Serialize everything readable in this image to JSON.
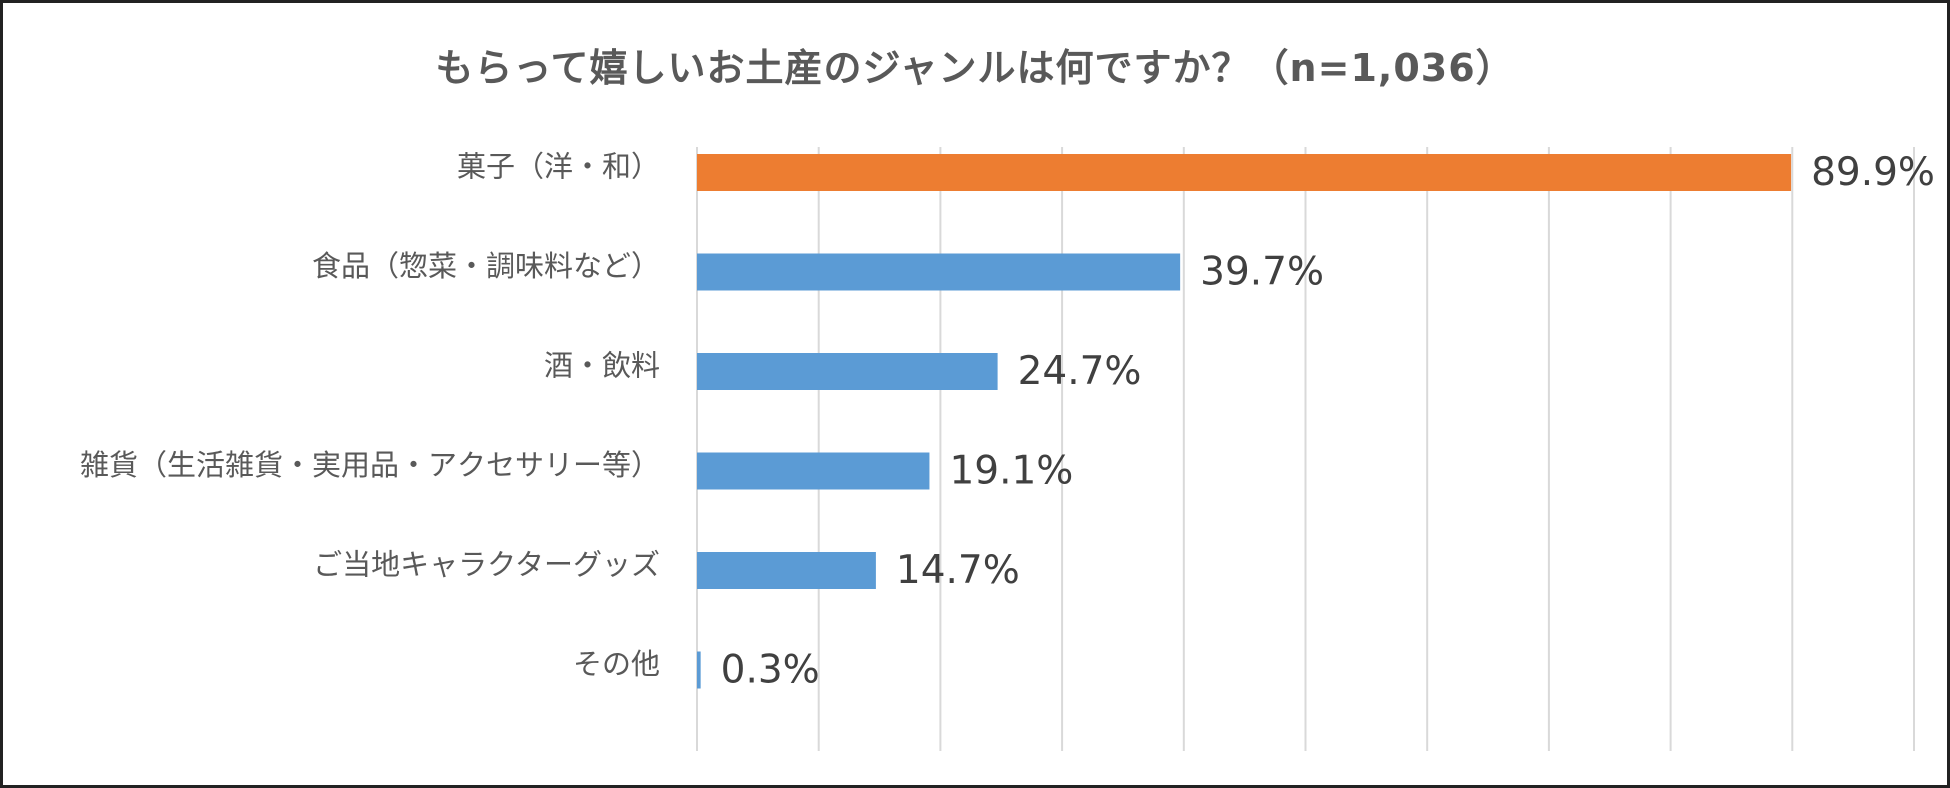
{
  "chart_data": {
    "type": "bar",
    "orientation": "horizontal",
    "title": "もらって嬉しいお土産のジャンルは何ですか？（n=1,036）",
    "categories": [
      "菓子（洋・和）",
      "食品（惣菜・調味料など）",
      "酒・飲料",
      "雑貨（生活雑貨・実用品・アクセサリー等）",
      "ご当地キャラクターグッズ",
      "その他"
    ],
    "values": [
      89.9,
      39.7,
      24.7,
      19.1,
      14.7,
      0.3
    ],
    "value_labels": [
      "89.9%",
      "39.7%",
      "24.7%",
      "19.1%",
      "14.7%",
      "0.3%"
    ],
    "highlight_index": 0,
    "xlim": [
      0,
      100
    ],
    "gridlines": true,
    "gridline_step": 10,
    "legend": "none",
    "colors": {
      "highlight": "#ED7D31",
      "default": "#5B9BD5",
      "grid": "#D9D9D9",
      "text": "#595959"
    }
  }
}
